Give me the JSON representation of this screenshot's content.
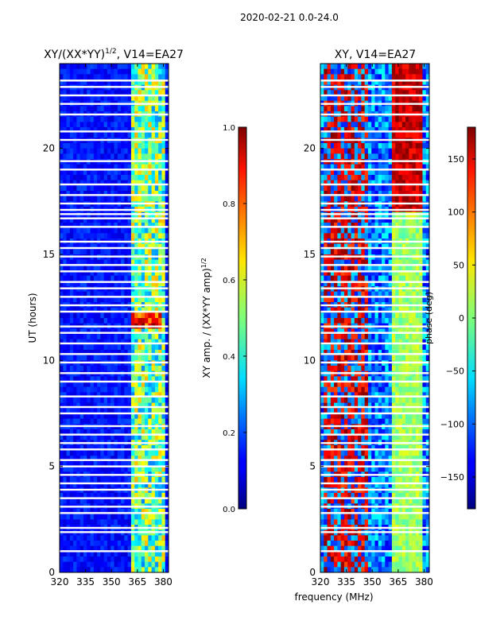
{
  "figure_title": "2020-02-21 0.0-24.0",
  "xlabel_shared": "frequency (MHz)",
  "chart_data": [
    {
      "type": "heatmap",
      "title": "XY/(XX*YY)",
      "title_exponent": "1/2",
      "title_suffix": ", V14=EA27",
      "xlabel": "",
      "ylabel": "UT (hours)",
      "x_range": [
        320,
        383
      ],
      "y_range": [
        0,
        24
      ],
      "x_ticks": [
        320,
        335,
        350,
        365,
        380
      ],
      "y_ticks": [
        0,
        5,
        10,
        15,
        20
      ],
      "colorbar": {
        "label": "XY amp. / (XX*YY amp)",
        "label_exponent": "1/2",
        "range": [
          0.0,
          1.0
        ],
        "ticks": [
          "0.0",
          "0.2",
          "0.4",
          "0.6",
          "0.8",
          "1.0"
        ],
        "colormap": "jet"
      }
    },
    {
      "type": "heatmap",
      "title": "XY, V14=EA27",
      "xlabel": "frequency (MHz)",
      "ylabel": "",
      "x_range": [
        320,
        383
      ],
      "y_range": [
        0,
        24
      ],
      "x_ticks": [
        320,
        335,
        350,
        365,
        380
      ],
      "y_ticks": [
        0,
        5,
        10,
        15,
        20
      ],
      "colorbar": {
        "label": "phase (deg)",
        "range": [
          -180,
          180
        ],
        "ticks": [
          "−150",
          "−100",
          "−50",
          "0",
          "50",
          "100",
          "150"
        ],
        "colormap": "jet"
      }
    }
  ]
}
